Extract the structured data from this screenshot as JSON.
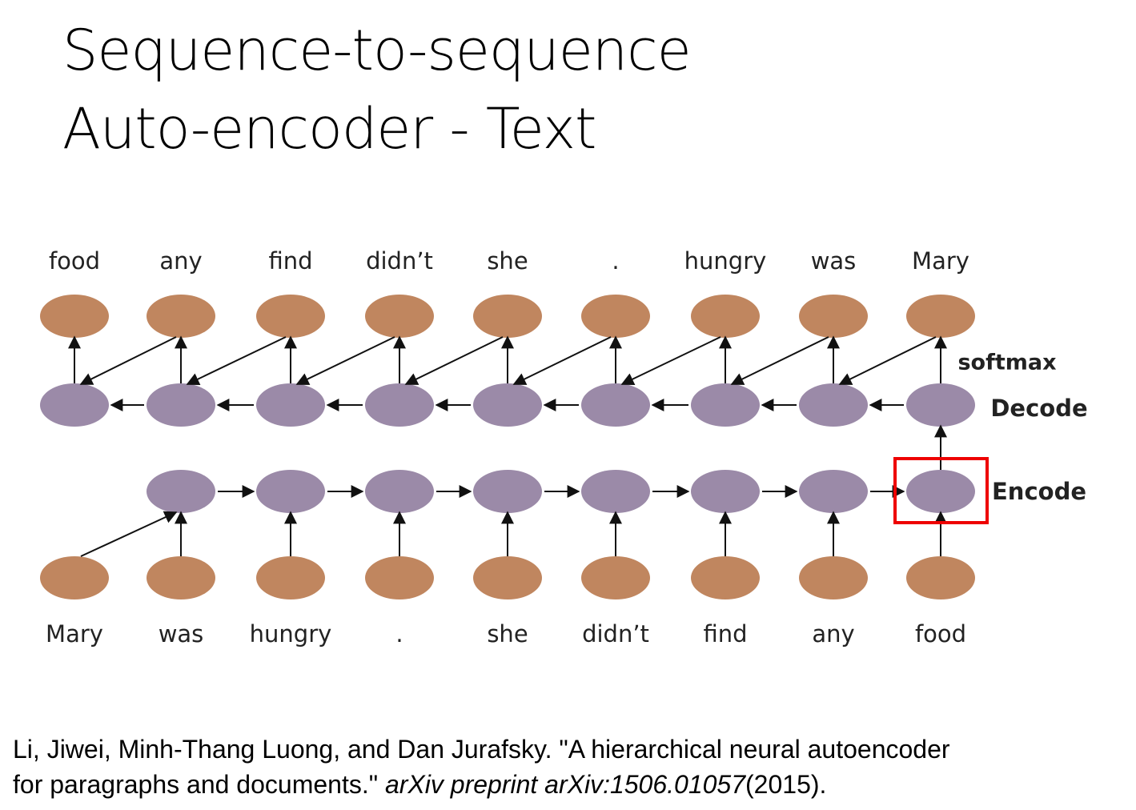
{
  "title": [
    "Sequence-to-sequence",
    "Auto-encoder - Text"
  ],
  "diagram": {
    "output_words": [
      "food",
      "any",
      "find",
      "didn’t",
      "she",
      ".",
      "hungry",
      "was",
      "Mary"
    ],
    "input_words": [
      "Mary",
      "was",
      "hungry",
      ".",
      "she",
      "didn’t",
      "find",
      "any",
      "food"
    ],
    "softmax_label": "softmax",
    "decode_label": "Decode",
    "encode_label": "Encode"
  },
  "citation": {
    "line1": "Li, Jiwei, Minh-Thang Luong, and Dan Jurafsky. \"A hierarchical neural autoencoder",
    "line2_start": "for paragraphs and documents.\" ",
    "line2_italic": "arXiv preprint arXiv:1506.01057",
    "line2_end": "(2015)."
  }
}
